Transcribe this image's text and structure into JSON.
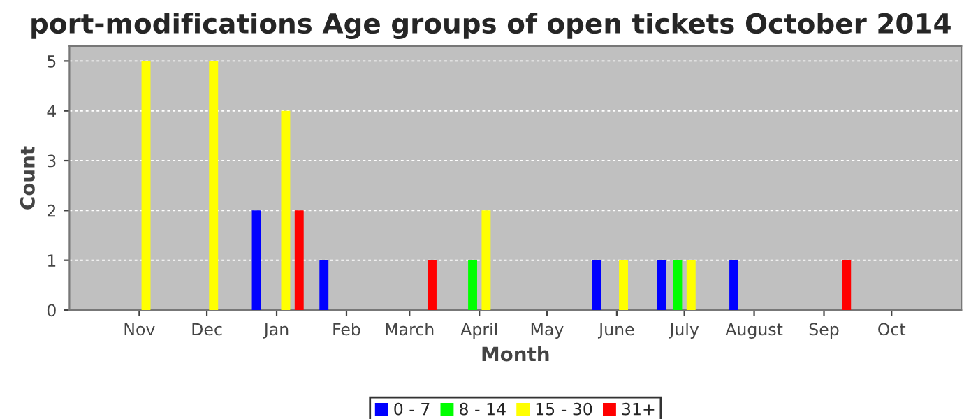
{
  "chart_data": {
    "type": "bar",
    "title": "port-modifications Age groups of open tickets October 2014",
    "xlabel": "Month",
    "ylabel": "Count",
    "series": [
      {
        "name": "0 - 7",
        "color": "#0000ff",
        "x": [
          "2013-12-23",
          "2014-01-22",
          "2014-05-23",
          "2014-06-21",
          "2014-07-23"
        ],
        "values": [
          2,
          1,
          1,
          1,
          1
        ]
      },
      {
        "name": "8 - 14",
        "color": "#00ff00",
        "x": [
          "2014-03-29",
          "2014-06-28"
        ],
        "values": [
          1,
          1
        ]
      },
      {
        "name": "15 - 30",
        "color": "#ffff00",
        "x": [
          "2013-11-04",
          "2013-12-04",
          "2014-01-05",
          "2014-04-04",
          "2014-06-04",
          "2014-07-04"
        ],
        "values": [
          5,
          5,
          4,
          2,
          1,
          1
        ]
      },
      {
        "name": "31+",
        "color": "#ff0000",
        "x": [
          "2014-01-11",
          "2014-03-11",
          "2014-09-11"
        ],
        "values": [
          2,
          1,
          1
        ]
      }
    ],
    "xlim": [
      "2013-10-01",
      "2014-11-01"
    ],
    "xticks": [
      {
        "value": "2013-11-01",
        "label": "Nov"
      },
      {
        "value": "2013-12-01",
        "label": "Dec"
      },
      {
        "value": "2014-01-01",
        "label": "Jan"
      },
      {
        "value": "2014-02-01",
        "label": "Feb"
      },
      {
        "value": "2014-03-01",
        "label": "March"
      },
      {
        "value": "2014-04-01",
        "label": "April"
      },
      {
        "value": "2014-05-01",
        "label": "May"
      },
      {
        "value": "2014-06-01",
        "label": "June"
      },
      {
        "value": "2014-07-01",
        "label": "July"
      },
      {
        "value": "2014-08-01",
        "label": "August"
      },
      {
        "value": "2014-09-01",
        "label": "Sep"
      },
      {
        "value": "2014-10-01",
        "label": "Oct"
      }
    ],
    "ylim": [
      0,
      5.3
    ],
    "yticks": [
      0,
      1,
      2,
      3,
      4,
      5
    ],
    "grid": "y",
    "legend": "bottom"
  }
}
